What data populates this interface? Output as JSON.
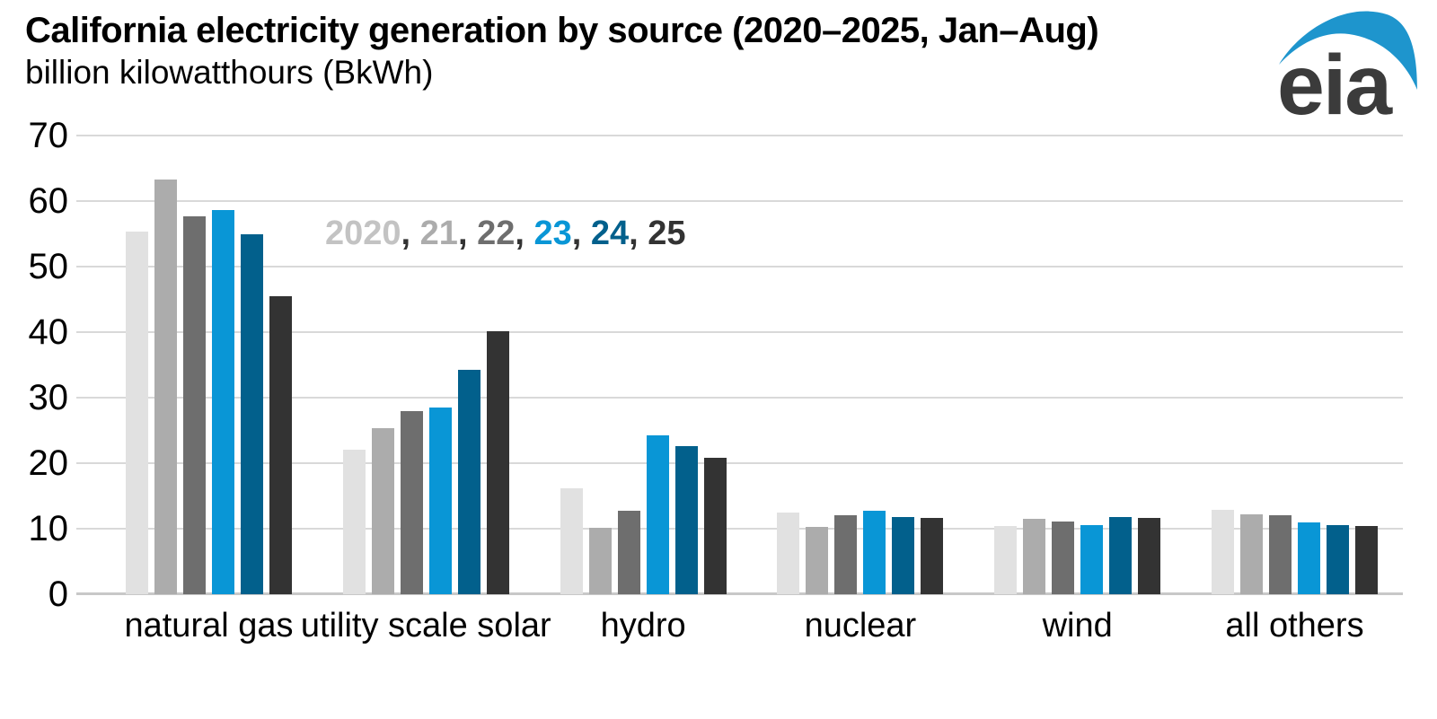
{
  "logo": {
    "text": "eia",
    "swoosh_color": "#1e95cd",
    "text_color": "#3b3b3b"
  },
  "colors": {
    "background": "#ffffff",
    "gridline": "#d9d9d9",
    "axis_line": "#c8c8c8",
    "text": "#000000",
    "legend_separator_color": "#333333"
  },
  "chart_data": {
    "type": "bar",
    "title": "California electricity generation by source (2020–2025, Jan–Aug)",
    "subtitle": "billion kilowatthours (BkWh)",
    "ylabel": "billion kilowatthours (BkWh)",
    "xlabel": "",
    "ylim": [
      0,
      70
    ],
    "yticks": [
      0,
      10,
      20,
      30,
      40,
      50,
      60,
      70
    ],
    "grid": "horizontal",
    "legend_position": "inside-top-left",
    "legend_separator": ", ",
    "categories": [
      "natural gas",
      "utility scale solar",
      "hydro",
      "nuclear",
      "wind",
      "all others"
    ],
    "series": [
      {
        "name": "2020",
        "color": "#e1e1e1",
        "legend_color": "#c3c3c3",
        "values": [
          55.4,
          22.0,
          16.2,
          12.5,
          10.4,
          12.9
        ]
      },
      {
        "name": "21",
        "color": "#acacac",
        "legend_color": "#acacac",
        "values": [
          63.3,
          25.4,
          10.2,
          10.3,
          11.5,
          12.2
        ]
      },
      {
        "name": "22",
        "color": "#6e6e6e",
        "legend_color": "#6e6e6e",
        "values": [
          57.7,
          27.9,
          12.7,
          12.0,
          11.1,
          12.1
        ]
      },
      {
        "name": "23",
        "color": "#0996d6",
        "legend_color": "#0996d6",
        "values": [
          58.6,
          28.5,
          24.2,
          12.8,
          10.6,
          11.0
        ]
      },
      {
        "name": "24",
        "color": "#02608c",
        "legend_color": "#02608c",
        "values": [
          55.0,
          34.3,
          22.6,
          11.8,
          11.8,
          10.5
        ]
      },
      {
        "name": "25",
        "color": "#333333",
        "legend_color": "#333333",
        "values": [
          45.5,
          40.2,
          20.8,
          11.7,
          11.7,
          10.4
        ]
      }
    ]
  }
}
